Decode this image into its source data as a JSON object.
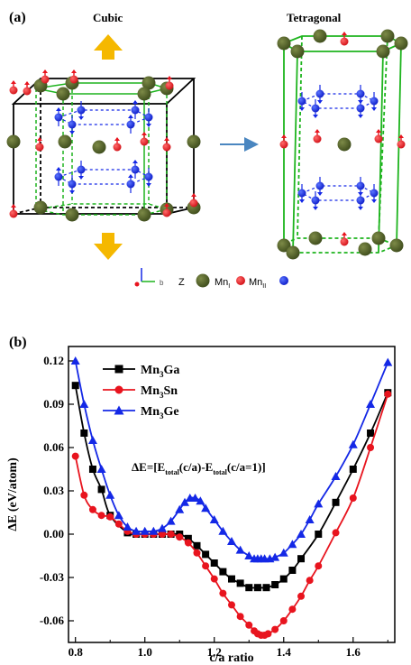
{
  "panel_a": {
    "label": "(a)",
    "cubic_label": "Cubic",
    "tetragonal_label": "Tetragonal",
    "legend": {
      "axis_text": "Z",
      "atom_z_label": "Mn",
      "atom_z_sub": "I",
      "atom_mn2_label": "Mn",
      "atom_mn2_sub": "II"
    },
    "colors": {
      "z_atom": "#4a5a24",
      "mn_i": "#e8141e",
      "mn_ii": "#1428e6",
      "cubic_frame": "#000000",
      "inner_frame": "#1eb41e",
      "arrow_yellow": "#f5b800",
      "transition_arrow": "#4a86c0"
    }
  },
  "panel_b": {
    "label": "(b)",
    "equation": {
      "lhs": "ΔE=[E",
      "sub1": "total",
      "mid": "(c/a)-E",
      "sub2": "total",
      "rhs": "(c/a=1)]"
    }
  },
  "chart_data": {
    "type": "line",
    "xlabel": "c/a ratio",
    "ylabel": "ΔE (eV/atom)",
    "xlim": [
      0.78,
      1.72
    ],
    "ylim": [
      -0.075,
      0.13
    ],
    "xticks": [
      "0.8",
      "1.0",
      "1.2",
      "1.4",
      "1.6"
    ],
    "yticks": [
      "0.12",
      "0.09",
      "0.06",
      "0.03",
      "0.00",
      "-0.03",
      "-0.06"
    ],
    "legend_position": "top-left",
    "series": [
      {
        "name": "Mn3Ga",
        "label_base": "Mn",
        "label_sub": "3",
        "label_rest": "Ga",
        "color": "#000000",
        "marker": "square",
        "x": [
          0.8,
          0.825,
          0.85,
          0.875,
          0.9,
          0.95,
          0.975,
          1.0,
          1.025,
          1.05,
          1.075,
          1.1,
          1.125,
          1.15,
          1.175,
          1.2,
          1.225,
          1.25,
          1.275,
          1.3,
          1.325,
          1.35,
          1.375,
          1.4,
          1.425,
          1.45,
          1.5,
          1.55,
          1.6,
          1.65,
          1.7
        ],
        "y": [
          0.103,
          0.07,
          0.045,
          0.031,
          0.013,
          0.001,
          0.0,
          0.0,
          0.0,
          0.0,
          0.0,
          0.0,
          -0.003,
          -0.008,
          -0.014,
          -0.02,
          -0.026,
          -0.031,
          -0.034,
          -0.037,
          -0.037,
          -0.037,
          -0.035,
          -0.031,
          -0.025,
          -0.017,
          0.0,
          0.022,
          0.045,
          0.07,
          0.098
        ]
      },
      {
        "name": "Mn3Sn",
        "label_base": "Mn",
        "label_sub": "3",
        "label_rest": "Sn",
        "color": "#e8141e",
        "marker": "circle",
        "x": [
          0.8,
          0.825,
          0.85,
          0.875,
          0.9,
          0.925,
          0.95,
          0.975,
          1.0,
          1.025,
          1.05,
          1.075,
          1.1,
          1.125,
          1.15,
          1.175,
          1.2,
          1.225,
          1.25,
          1.275,
          1.3,
          1.315,
          1.325,
          1.335,
          1.345,
          1.355,
          1.375,
          1.4,
          1.425,
          1.45,
          1.475,
          1.5,
          1.55,
          1.6,
          1.65,
          1.7
        ],
        "y": [
          0.054,
          0.027,
          0.017,
          0.013,
          0.012,
          0.007,
          0.002,
          0.0,
          0.0,
          0.0,
          0.0,
          0.0,
          -0.002,
          -0.006,
          -0.013,
          -0.022,
          -0.031,
          -0.041,
          -0.049,
          -0.057,
          -0.063,
          -0.067,
          -0.069,
          -0.07,
          -0.07,
          -0.069,
          -0.066,
          -0.06,
          -0.052,
          -0.043,
          -0.032,
          -0.022,
          0.001,
          0.025,
          0.06,
          0.097
        ]
      },
      {
        "name": "Mn3Ge",
        "label_base": "Mn",
        "label_sub": "3",
        "label_rest": "Ge",
        "color": "#1428e6",
        "marker": "triangle",
        "x": [
          0.8,
          0.825,
          0.85,
          0.875,
          0.9,
          0.925,
          0.95,
          0.975,
          1.0,
          1.025,
          1.05,
          1.075,
          1.1,
          1.115,
          1.13,
          1.145,
          1.16,
          1.175,
          1.2,
          1.225,
          1.25,
          1.275,
          1.3,
          1.315,
          1.325,
          1.335,
          1.345,
          1.36,
          1.375,
          1.4,
          1.425,
          1.45,
          1.475,
          1.5,
          1.55,
          1.6,
          1.65,
          1.7
        ],
        "y": [
          0.12,
          0.09,
          0.065,
          0.045,
          0.027,
          0.013,
          0.005,
          0.002,
          0.002,
          0.002,
          0.004,
          0.009,
          0.017,
          0.022,
          0.025,
          0.025,
          0.023,
          0.018,
          0.01,
          0.002,
          -0.005,
          -0.011,
          -0.015,
          -0.017,
          -0.017,
          -0.017,
          -0.017,
          -0.017,
          -0.016,
          -0.013,
          -0.007,
          0.0,
          0.01,
          0.021,
          0.04,
          0.062,
          0.09,
          0.119
        ]
      }
    ]
  }
}
